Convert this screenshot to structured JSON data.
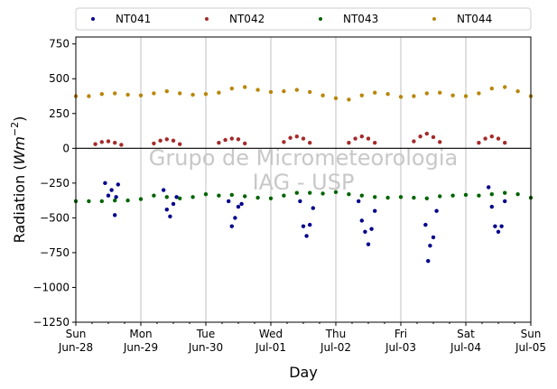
{
  "chart_data": {
    "type": "scatter",
    "xlabel": "Day",
    "ylabel_main": "Radiation (",
    "ylabel_unit": "Wm",
    "ylabel_exp": "−2",
    "ylabel_close": ")",
    "ylim": [
      -1250,
      800
    ],
    "xlim": [
      0,
      7
    ],
    "yticks": [
      {
        "v": 750,
        "label": "750"
      },
      {
        "v": 500,
        "label": "500"
      },
      {
        "v": 250,
        "label": "250"
      },
      {
        "v": 0,
        "label": "0"
      },
      {
        "v": -250,
        "label": "−250"
      },
      {
        "v": -500,
        "label": "−500"
      },
      {
        "v": -750,
        "label": "−750"
      },
      {
        "v": -1000,
        "label": "−1000"
      },
      {
        "v": -1250,
        "label": "−1250"
      }
    ],
    "xticks": [
      {
        "v": 0,
        "line1": "Sun",
        "line2": "Jun-28"
      },
      {
        "v": 1,
        "line1": "Mon",
        "line2": "Jun-29"
      },
      {
        "v": 2,
        "line1": "Tue",
        "line2": "Jun-30"
      },
      {
        "v": 3,
        "line1": "Wed",
        "line2": "Jul-01"
      },
      {
        "v": 4,
        "line1": "Thu",
        "line2": "Jul-02"
      },
      {
        "v": 5,
        "line1": "Fri",
        "line2": "Jul-03"
      },
      {
        "v": 6,
        "line1": "Sat",
        "line2": "Jul-04"
      },
      {
        "v": 7,
        "line1": "Sun",
        "line2": "Jul-05"
      }
    ],
    "grid": "vertical",
    "legend_placement": "top, above plot",
    "watermark_line1": "Grupo de Micrometeorologia",
    "watermark_line2": "IAG - USP",
    "series": [
      {
        "name": "NT041",
        "color": "#00008b",
        "x": [
          0.45,
          0.5,
          0.55,
          0.6,
          0.62,
          0.65,
          1.35,
          1.4,
          1.45,
          1.5,
          1.55,
          2.35,
          2.4,
          2.45,
          2.5,
          2.55,
          3.45,
          3.5,
          3.55,
          3.6,
          3.65,
          4.35,
          4.4,
          4.45,
          4.5,
          4.55,
          4.6,
          5.38,
          5.42,
          5.45,
          5.5,
          5.55,
          6.35,
          6.4,
          6.45,
          6.5,
          6.55,
          6.6
        ],
        "y": [
          -250,
          -340,
          -300,
          -480,
          -350,
          -260,
          -300,
          -440,
          -490,
          -400,
          -350,
          -380,
          -560,
          -500,
          -420,
          -400,
          -380,
          -560,
          -630,
          -550,
          -430,
          -380,
          -520,
          -600,
          -690,
          -580,
          -450,
          -550,
          -810,
          -700,
          -640,
          -450,
          -280,
          -420,
          -560,
          -600,
          -560,
          -380
        ]
      },
      {
        "name": "NT042",
        "color": "#a52a2a",
        "x": [
          0.3,
          0.4,
          0.5,
          0.6,
          0.7,
          1.2,
          1.3,
          1.4,
          1.5,
          1.6,
          2.2,
          2.3,
          2.4,
          2.5,
          2.6,
          3.2,
          3.3,
          3.4,
          3.5,
          3.6,
          4.2,
          4.3,
          4.4,
          4.5,
          4.6,
          5.2,
          5.3,
          5.4,
          5.5,
          5.6,
          6.2,
          6.3,
          6.4,
          6.5,
          6.6
        ],
        "y": [
          30,
          45,
          50,
          40,
          25,
          35,
          55,
          65,
          55,
          30,
          40,
          60,
          70,
          65,
          35,
          45,
          75,
          85,
          70,
          40,
          40,
          70,
          85,
          70,
          40,
          50,
          85,
          105,
          80,
          45,
          40,
          70,
          85,
          70,
          40
        ]
      },
      {
        "name": "NT043",
        "color": "#006400",
        "x": [
          0,
          0.2,
          0.4,
          0.6,
          0.8,
          1.0,
          1.2,
          1.4,
          1.6,
          1.8,
          2.0,
          2.2,
          2.4,
          2.6,
          2.8,
          3.0,
          3.2,
          3.4,
          3.6,
          3.8,
          4.0,
          4.2,
          4.4,
          4.6,
          4.8,
          5.0,
          5.2,
          5.4,
          5.6,
          5.8,
          6.0,
          6.2,
          6.4,
          6.6,
          6.8,
          7.0
        ],
        "y": [
          -380,
          -380,
          -380,
          -375,
          -375,
          -365,
          -340,
          -350,
          -360,
          -350,
          -330,
          -340,
          -335,
          -345,
          -355,
          -360,
          -340,
          -320,
          -320,
          -325,
          -315,
          -330,
          -340,
          -350,
          -355,
          -350,
          -355,
          -360,
          -345,
          -340,
          -335,
          -340,
          -330,
          -320,
          -330,
          -355
        ]
      },
      {
        "name": "NT044",
        "color": "#b8860b",
        "x": [
          0,
          0.2,
          0.4,
          0.6,
          0.8,
          1.0,
          1.2,
          1.4,
          1.6,
          1.8,
          2.0,
          2.2,
          2.4,
          2.6,
          2.8,
          3.0,
          3.2,
          3.4,
          3.6,
          3.8,
          4.0,
          4.2,
          4.4,
          4.6,
          4.8,
          5.0,
          5.2,
          5.4,
          5.6,
          5.8,
          6.0,
          6.2,
          6.4,
          6.6,
          6.8,
          7.0
        ],
        "y": [
          375,
          375,
          390,
          395,
          385,
          380,
          395,
          410,
          395,
          385,
          390,
          400,
          430,
          440,
          420,
          405,
          410,
          420,
          405,
          380,
          360,
          350,
          380,
          400,
          390,
          370,
          375,
          395,
          400,
          380,
          375,
          395,
          430,
          440,
          410,
          375
        ]
      }
    ]
  }
}
